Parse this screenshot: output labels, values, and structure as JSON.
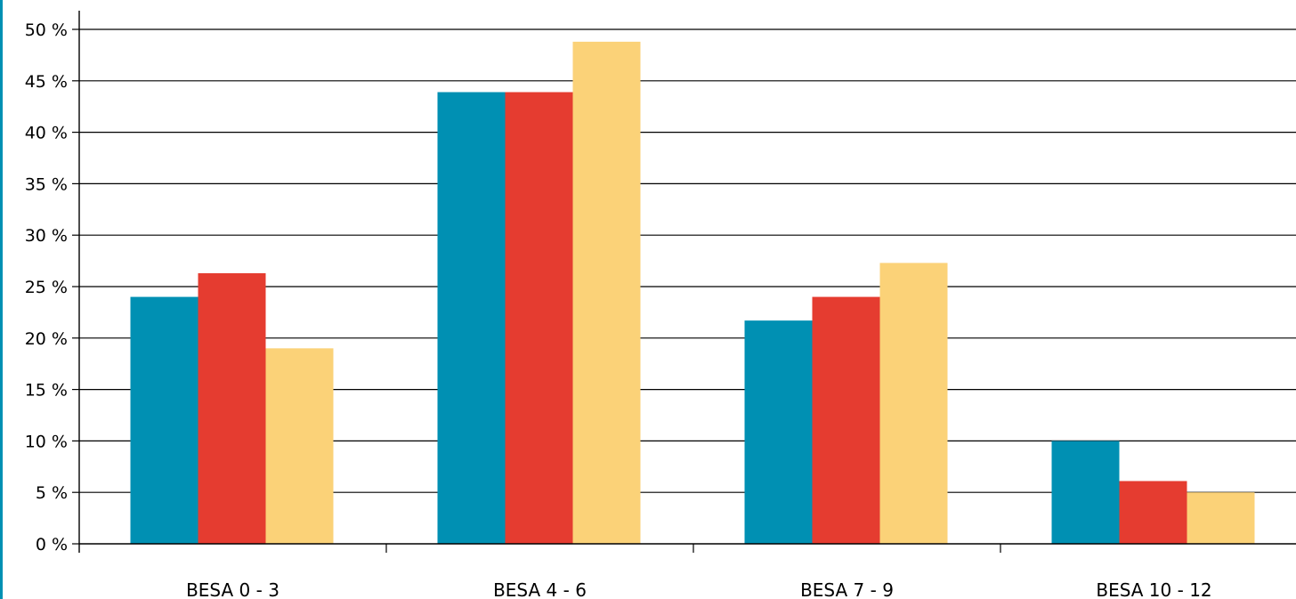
{
  "chart_data": {
    "type": "bar",
    "categories": [
      "BESA 0 - 3",
      "BESA 4 - 6",
      "BESA 7 - 9",
      "BESA 10 - 12"
    ],
    "series": [
      {
        "color": "#0090B3",
        "values": [
          24,
          43.9,
          21.7,
          10
        ]
      },
      {
        "color": "#E53C30",
        "values": [
          26.3,
          43.9,
          24,
          6.1
        ]
      },
      {
        "color": "#FBD278",
        "values": [
          19,
          48.8,
          27.3,
          5
        ]
      }
    ],
    "yticks": [
      "0 %",
      "5 %",
      "10 %",
      "15 %",
      "20 %",
      "25 %",
      "30 %",
      "35 %",
      "40 %",
      "45 %",
      "50 %"
    ],
    "ylim": [
      0,
      50
    ],
    "grid": true,
    "title": "",
    "xlabel": "",
    "ylabel": ""
  },
  "colors": {
    "left_edge": "#0090B3",
    "grid": "#000000",
    "axis": "#000000"
  }
}
